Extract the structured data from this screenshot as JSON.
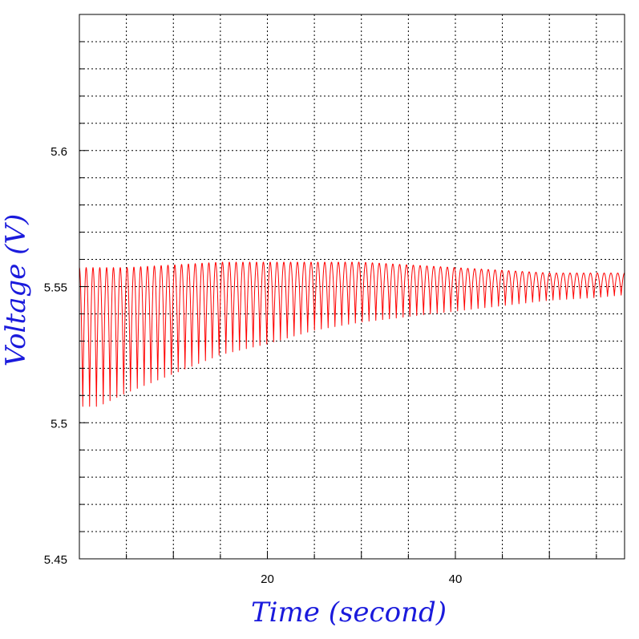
{
  "chart_data": {
    "type": "line",
    "title": "",
    "xlabel": "Time  (second)",
    "ylabel": "Voltage  (V)",
    "xlim": [
      0,
      58
    ],
    "ylim": [
      5.45,
      5.65
    ],
    "x_ticks": [
      20,
      40
    ],
    "x_tick_labels": [
      "20",
      "40"
    ],
    "y_ticks": [
      5.45,
      5.5,
      5.55,
      5.6
    ],
    "y_tick_labels": [
      "5.45",
      "5.5",
      "5.55",
      "5.6"
    ],
    "x_grid_step": 5,
    "y_grid_step": 0.01,
    "grid": true,
    "legend": "none",
    "series": [
      {
        "color": "#ff0000",
        "upper_envelope": {
          "x": [
            0,
            5,
            10,
            15,
            20,
            25,
            30,
            35,
            40,
            45,
            50,
            55,
            58
          ],
          "y": [
            5.557,
            5.557,
            5.558,
            5.559,
            5.559,
            5.559,
            5.559,
            5.558,
            5.557,
            5.556,
            5.555,
            5.555,
            5.555
          ]
        },
        "lower_envelope": {
          "x": [
            0,
            2,
            5,
            10,
            15,
            20,
            25,
            30,
            35,
            40,
            45,
            50,
            55,
            58
          ],
          "y": [
            5.506,
            5.506,
            5.511,
            5.518,
            5.525,
            5.529,
            5.534,
            5.537,
            5.539,
            5.541,
            5.543,
            5.545,
            5.546,
            5.547
          ]
        },
        "oscillations": 80
      }
    ]
  },
  "colors": {
    "series": "#ff0000",
    "axis_title": "#1a1adc",
    "grid": "#000000",
    "frame": "#000000"
  }
}
